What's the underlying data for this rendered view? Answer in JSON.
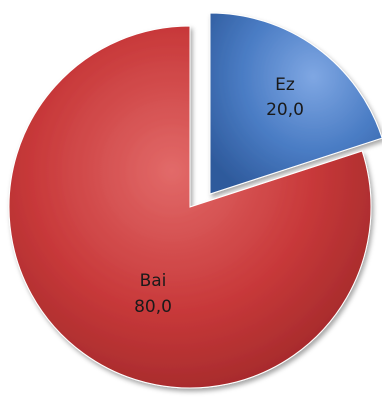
{
  "chart_data": {
    "type": "pie",
    "title": "",
    "legend": "none",
    "exploded": "Ez",
    "slices": [
      {
        "name": "Ez",
        "value": 20.0,
        "value_label": "20,0",
        "color": "#4a7cc4"
      },
      {
        "name": "Bai",
        "value": 80.0,
        "value_label": "80,0",
        "color": "#c8393a"
      }
    ]
  }
}
